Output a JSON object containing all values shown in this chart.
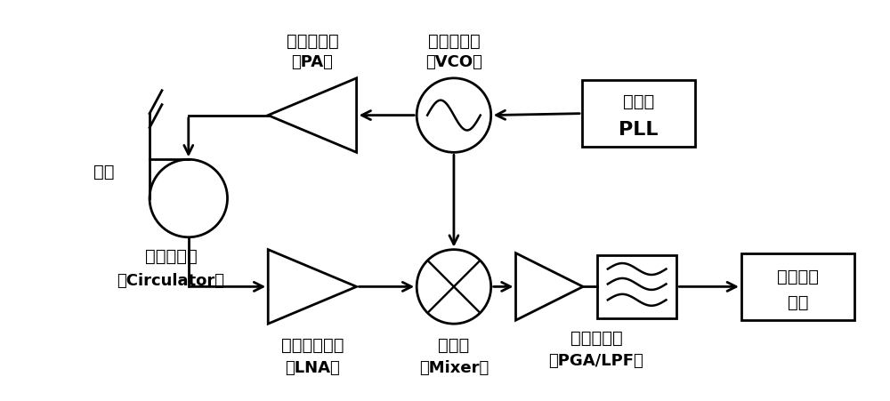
{
  "bg": "#ffffff",
  "lc": "#000000",
  "lw": 2.0,
  "blw": 2.0,
  "cn_fs": 14,
  "en_fs": 13,
  "labels": {
    "ant": "天线",
    "circ_cn": "片外环形器",
    "circ_en": "（Circulator）",
    "pa_cn": "功率放大器",
    "pa_en": "（PA）",
    "vco_cn": "压控振荡器",
    "vco_en": "（VCO）",
    "pll_cn": "锁相环",
    "pll_en": "PLL",
    "lna_cn": "低噪声放大器",
    "lna_en": "（LNA）",
    "mix_cn": "混频器",
    "mix_en": "（Mixer）",
    "pga_cn": "中频放大器",
    "pga_en": "（PGA/LPF）",
    "dsp1": "数字处理",
    "dsp2": "模块"
  }
}
